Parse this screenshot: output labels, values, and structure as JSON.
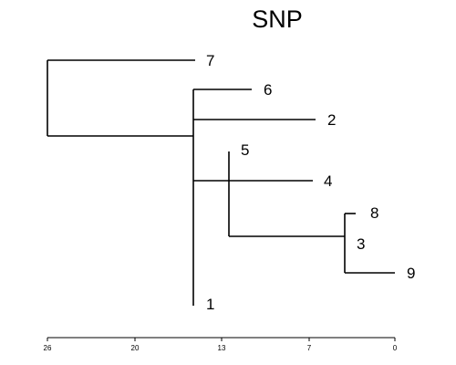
{
  "title": "SNP",
  "colors": {
    "ink": "#000000",
    "background": "#ffffff"
  },
  "leaves": [
    {
      "id": "7",
      "label": "7"
    },
    {
      "id": "6",
      "label": "6"
    },
    {
      "id": "2",
      "label": "2"
    },
    {
      "id": "5",
      "label": "5"
    },
    {
      "id": "4",
      "label": "4"
    },
    {
      "id": "8",
      "label": "8"
    },
    {
      "id": "3",
      "label": "3"
    },
    {
      "id": "9",
      "label": "9"
    },
    {
      "id": "1",
      "label": "1"
    }
  ],
  "axis": {
    "ticks": [
      "26",
      "20",
      "13",
      "7",
      "0"
    ]
  }
}
